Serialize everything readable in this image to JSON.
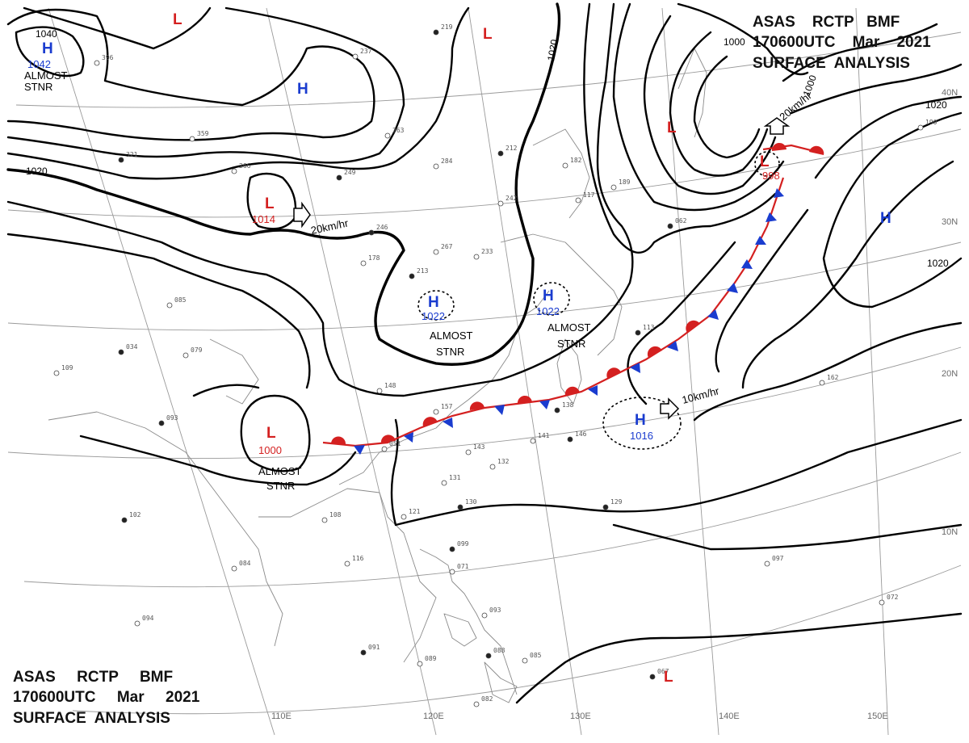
{
  "header": {
    "top_right": [
      "ASAS    RCTP   BMF",
      "170600UTC    Mar    2021",
      "SURFACE  ANALYSIS"
    ],
    "bottom_left": [
      "ASAS     RCTP     BMF",
      "170600UTC     Mar     2021",
      "SURFACE  ANALYSIS"
    ]
  },
  "grid_labels": {
    "longitudes": [
      "110E",
      "120E",
      "130E",
      "140E",
      "150E"
    ],
    "latitudes": [
      "40N",
      "30N",
      "20N",
      "10N"
    ]
  },
  "isobar_labels": [
    "1040",
    "1020",
    "1020",
    "1000",
    "1000",
    "1020",
    "1020"
  ],
  "pressure_centers": [
    {
      "type": "H",
      "value": "1042",
      "note": "ALMOST STNR"
    },
    {
      "type": "H",
      "value": ""
    },
    {
      "type": "L",
      "value": "1014"
    },
    {
      "type": "H",
      "value": "1022",
      "note": "ALMOST STNR"
    },
    {
      "type": "H",
      "value": "1022",
      "note": "ALMOST STNR"
    },
    {
      "type": "L",
      "value": "1000",
      "note": "ALMOST STNR"
    },
    {
      "type": "H",
      "value": "1016"
    },
    {
      "type": "L",
      "value": "998"
    },
    {
      "type": "L",
      "value": ""
    },
    {
      "type": "H",
      "value": ""
    },
    {
      "type": "L",
      "value": ""
    },
    {
      "type": "L",
      "value": ""
    },
    {
      "type": "L",
      "value": ""
    }
  ],
  "motion_labels": [
    "20km/hr",
    "20km/hr",
    "10km/hr"
  ],
  "station_samples": [
    "219",
    "237",
    "396",
    "321",
    "359",
    "266",
    "249",
    "263",
    "284",
    "246",
    "267",
    "233",
    "213",
    "178",
    "085",
    "034",
    "079",
    "109",
    "093",
    "148",
    "157",
    "138",
    "143",
    "131",
    "130",
    "132",
    "141",
    "146",
    "121",
    "108",
    "102",
    "084",
    "116",
    "099",
    "071",
    "094",
    "091",
    "089",
    "093",
    "088",
    "085",
    "082",
    "129",
    "097",
    "072",
    "067",
    "162",
    "190",
    "113",
    "117",
    "242",
    "212",
    "182",
    "189",
    "062",
    "051",
    "098"
  ]
}
